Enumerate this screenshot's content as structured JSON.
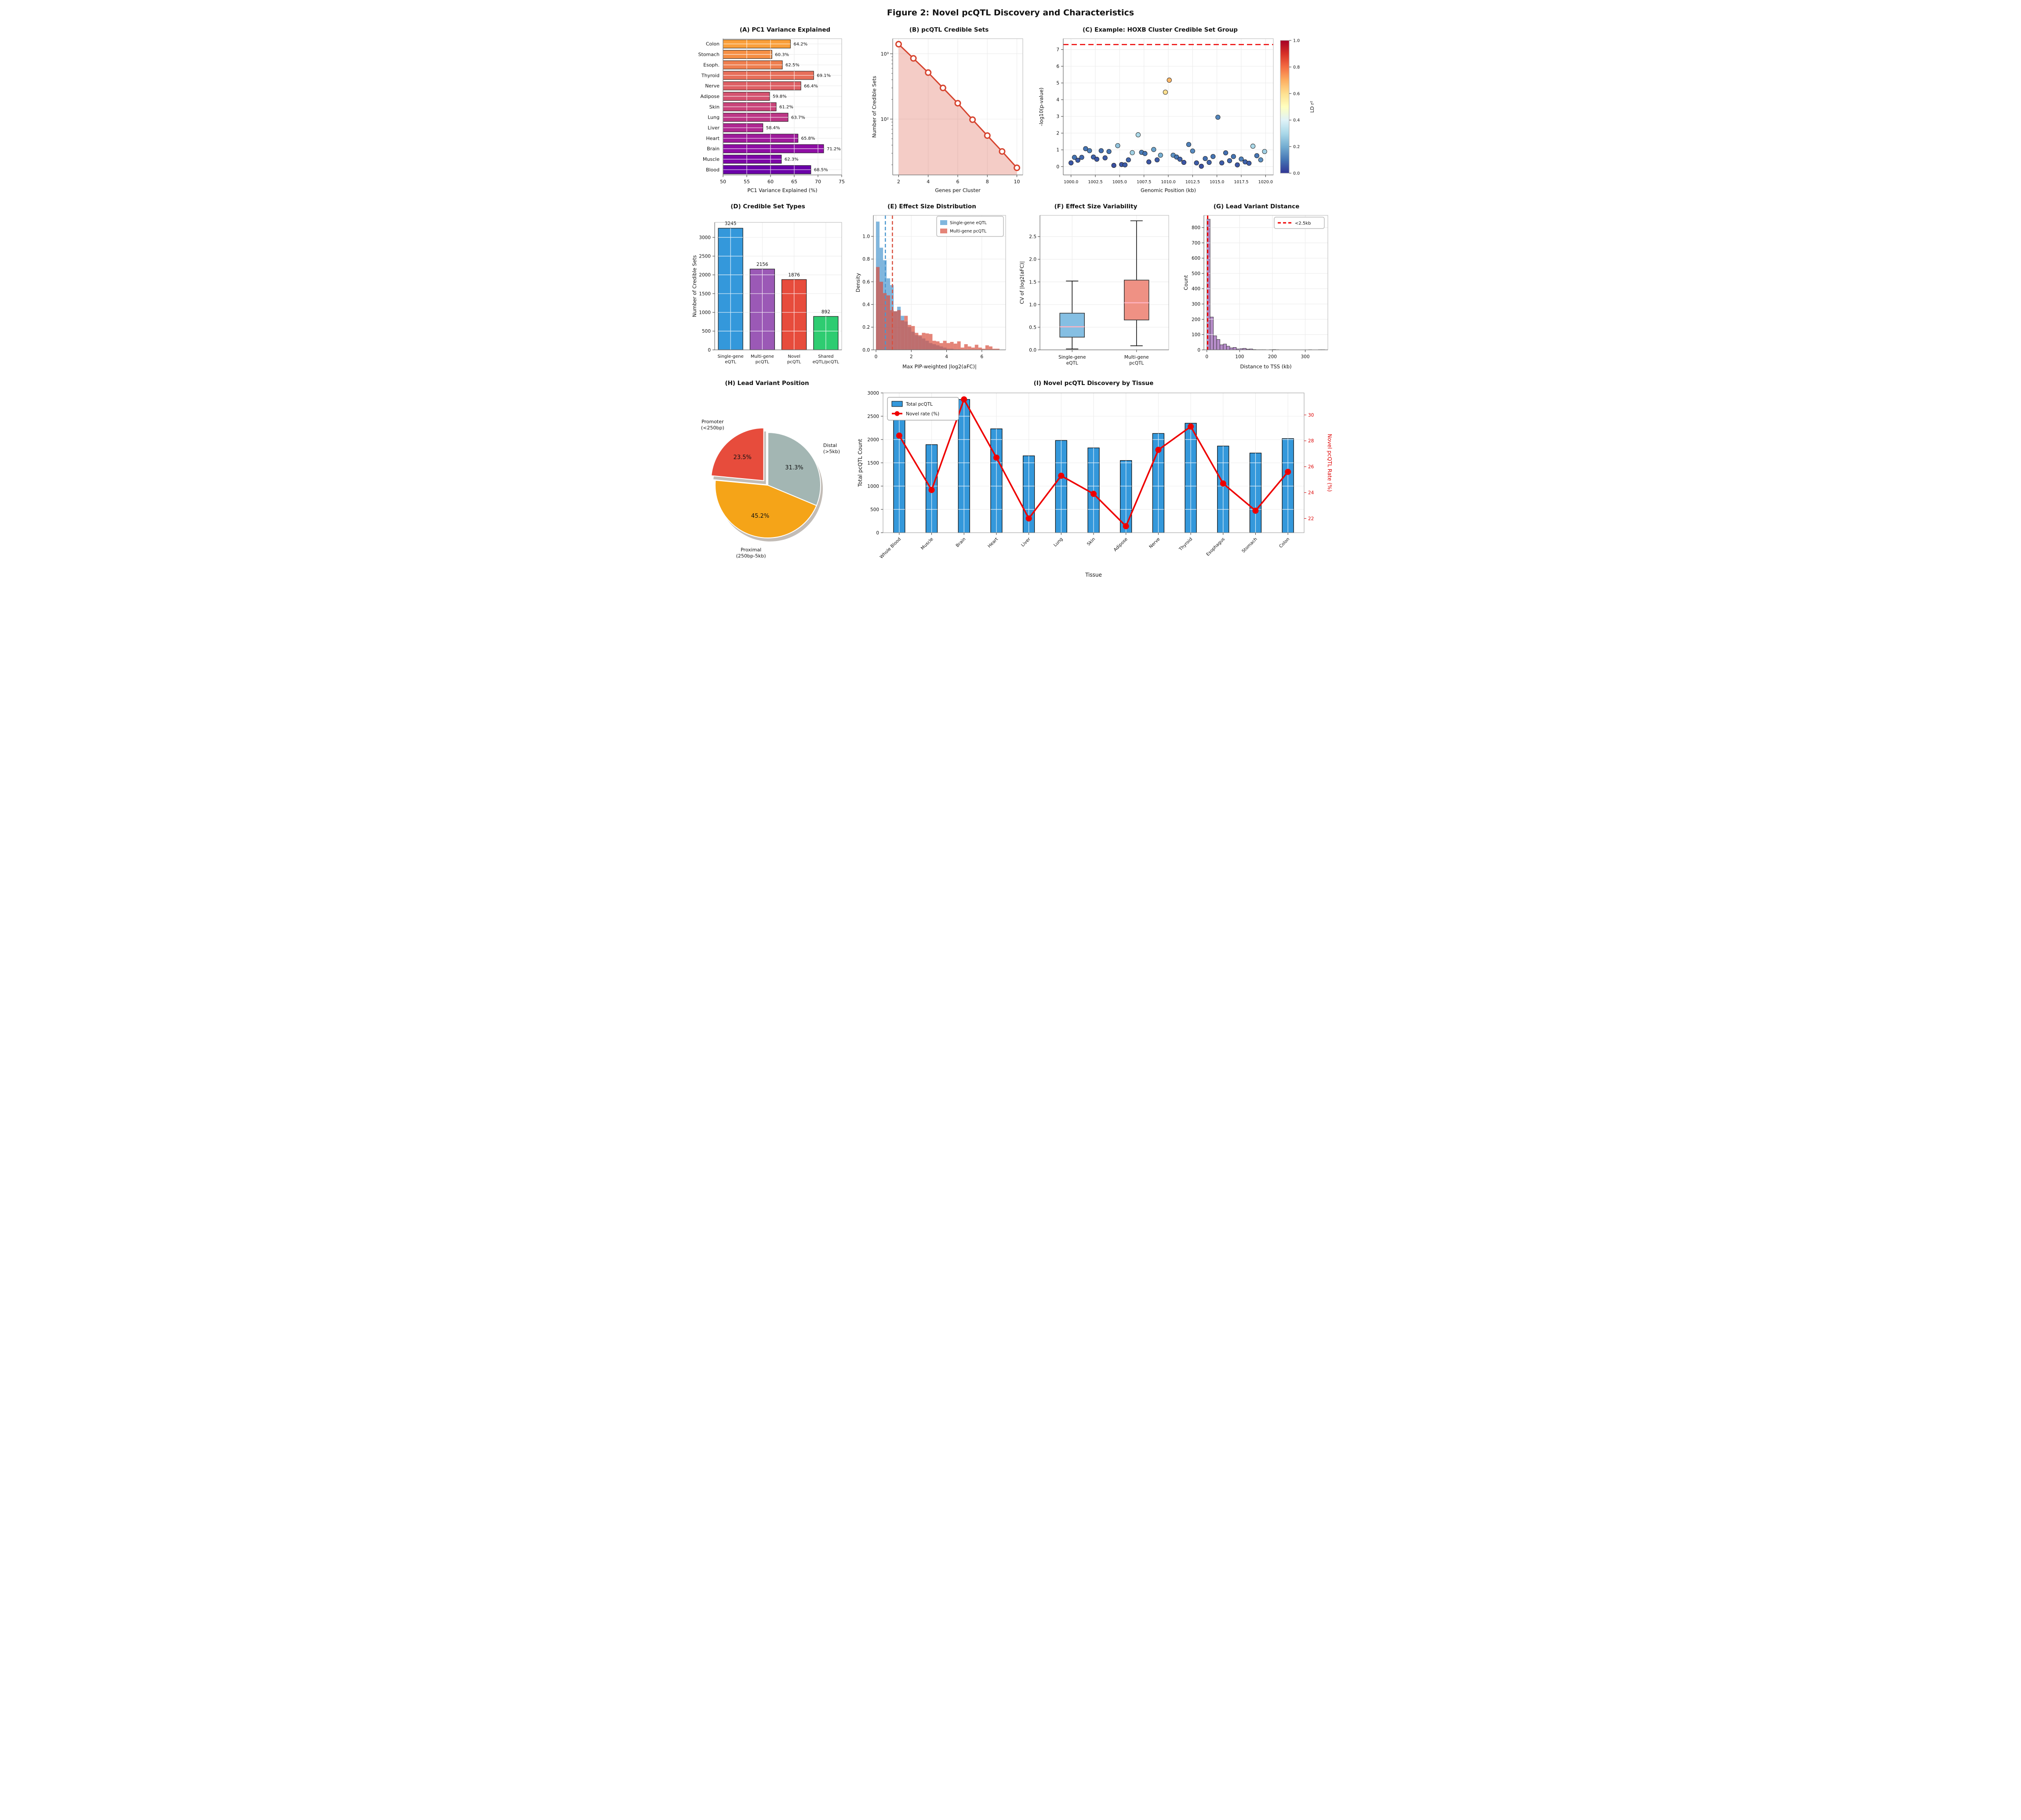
{
  "figure": {
    "title": "Figure 2: Novel pcQTL Discovery and Characteristics",
    "background": "#ffffff"
  },
  "chart_data": [
    {
      "id": "A",
      "type": "bar",
      "orientation": "horizontal",
      "title": "(A) PC1 Variance Explained",
      "xlabel": "PC1 Variance Explained (%)",
      "categories": [
        "Colon",
        "Stomach",
        "Esoph.",
        "Thyroid",
        "Nerve",
        "Adipose",
        "Skin",
        "Lung",
        "Liver",
        "Heart",
        "Brain",
        "Muscle",
        "Blood"
      ],
      "values": [
        64.2,
        60.3,
        62.5,
        69.1,
        66.4,
        59.8,
        61.2,
        63.7,
        58.4,
        65.8,
        71.2,
        62.3,
        68.5
      ],
      "value_labels": [
        "64.2%",
        "60.3%",
        "62.5%",
        "69.1%",
        "66.4%",
        "59.8%",
        "61.2%",
        "63.7%",
        "58.4%",
        "65.8%",
        "71.2%",
        "62.3%",
        "68.5%"
      ],
      "bar_colors": [
        "#fa9f3a",
        "#f58f44",
        "#ef7f4f",
        "#e76f5a",
        "#de6065",
        "#d45270",
        "#c9447a",
        "#bc3686",
        "#af2891",
        "#9e1a9b",
        "#8e0da4",
        "#7c06a6",
        "#6a00a8"
      ],
      "xlim": [
        50,
        75
      ],
      "xticks": [
        50,
        55,
        60,
        65,
        70,
        75
      ],
      "grid": true
    },
    {
      "id": "B",
      "type": "line",
      "title": "(B) pcQTL Credible Sets",
      "xlabel": "Genes per Cluster",
      "ylabel": "Number of Credible Sets",
      "x": [
        2,
        3,
        4,
        5,
        6,
        7,
        8,
        9,
        10
      ],
      "y": [
        1400,
        850,
        515,
        300,
        175,
        98,
        56,
        32,
        18
      ],
      "yscale": "log",
      "ylim": [
        14,
        1700
      ],
      "xlim": [
        1.6,
        10.4
      ],
      "xticks": [
        2,
        4,
        6,
        8,
        10
      ],
      "ytick_vals": [
        100,
        1000
      ],
      "ytick_labels": [
        "10²",
        "10³"
      ],
      "minor_ticks": [
        20,
        30,
        40,
        50,
        60,
        70,
        80,
        90,
        200,
        300,
        400,
        500,
        600,
        700,
        800,
        900
      ],
      "line_color": "#d6432e",
      "fill_opacity": 0.27
    },
    {
      "id": "C",
      "type": "scatter",
      "title": "(C) Example: HOXB Cluster Credible Set Group",
      "xlabel": "Genomic Position (kb)",
      "ylabel": "-log10(p-value)",
      "points": [
        [
          1000.0,
          0.22,
          0.05
        ],
        [
          1000.35,
          0.55,
          0.1
        ],
        [
          1000.7,
          0.38,
          0.06
        ],
        [
          1001.1,
          0.55,
          0.08
        ],
        [
          1001.5,
          1.07,
          0.1
        ],
        [
          1001.9,
          0.95,
          0.12
        ],
        [
          1002.3,
          0.57,
          0.07
        ],
        [
          1002.65,
          0.44,
          0.05
        ],
        [
          1003.1,
          0.95,
          0.09
        ],
        [
          1003.5,
          0.52,
          0.06
        ],
        [
          1003.9,
          0.9,
          0.1
        ],
        [
          1004.4,
          0.07,
          0.04
        ],
        [
          1004.8,
          1.25,
          0.25
        ],
        [
          1005.2,
          0.12,
          0.05
        ],
        [
          1005.55,
          0.1,
          0.06
        ],
        [
          1005.9,
          0.4,
          0.07
        ],
        [
          1006.3,
          0.83,
          0.28
        ],
        [
          1006.9,
          1.9,
          0.3
        ],
        [
          1007.25,
          0.85,
          0.12
        ],
        [
          1007.6,
          0.78,
          0.1
        ],
        [
          1008.0,
          0.28,
          0.05
        ],
        [
          1008.5,
          1.02,
          0.18
        ],
        [
          1008.85,
          0.4,
          0.06
        ],
        [
          1009.2,
          0.68,
          0.2
        ],
        [
          1009.7,
          4.45,
          0.6
        ],
        [
          1010.1,
          5.17,
          0.68
        ],
        [
          1010.5,
          0.68,
          0.15
        ],
        [
          1010.85,
          0.57,
          0.1
        ],
        [
          1011.2,
          0.44,
          0.07
        ],
        [
          1011.6,
          0.25,
          0.05
        ],
        [
          1012.1,
          1.32,
          0.12
        ],
        [
          1012.5,
          0.93,
          0.14
        ],
        [
          1012.9,
          0.22,
          0.06
        ],
        [
          1013.4,
          0.02,
          0.04
        ],
        [
          1013.8,
          0.48,
          0.09
        ],
        [
          1014.2,
          0.25,
          0.07
        ],
        [
          1014.6,
          0.6,
          0.1
        ],
        [
          1015.1,
          2.95,
          0.13
        ],
        [
          1015.5,
          0.22,
          0.06
        ],
        [
          1015.9,
          0.82,
          0.09
        ],
        [
          1016.3,
          0.35,
          0.08
        ],
        [
          1016.7,
          0.6,
          0.1
        ],
        [
          1017.1,
          0.1,
          0.05
        ],
        [
          1017.5,
          0.45,
          0.12
        ],
        [
          1017.9,
          0.28,
          0.07
        ],
        [
          1018.3,
          0.2,
          0.06
        ],
        [
          1018.7,
          1.22,
          0.3
        ],
        [
          1019.1,
          0.65,
          0.1
        ],
        [
          1019.5,
          0.4,
          0.15
        ],
        [
          1019.9,
          0.9,
          0.28
        ]
      ],
      "xlim": [
        999.2,
        1020.8
      ],
      "ylim": [
        -0.5,
        7.65
      ],
      "xtick_vals": [
        1000,
        1002.5,
        1005,
        1007.5,
        1010,
        1012.5,
        1015,
        1017.5,
        1020
      ],
      "xtick_labels": [
        "1000.0",
        "1002.5",
        "1005.0",
        "1007.5",
        "1010.0",
        "1012.5",
        "1015.0",
        "1017.5",
        "1020.0"
      ],
      "yticks": [
        0,
        1,
        2,
        3,
        4,
        5,
        6,
        7
      ],
      "threshold_line": {
        "y": 7.3,
        "color": "#ee1111"
      },
      "colorbar": {
        "label": "LD r²",
        "ticks": [
          "0.0",
          "0.2",
          "0.4",
          "0.6",
          "0.8",
          "1.0"
        ],
        "cmap": [
          "#313695",
          "#4575b4",
          "#74add1",
          "#abd9e9",
          "#e0f3f8",
          "#ffffbf",
          "#fee090",
          "#fdae61",
          "#f46d43",
          "#d73027",
          "#a50026"
        ]
      }
    },
    {
      "id": "D",
      "type": "bar",
      "orientation": "vertical",
      "title": "(D) Credible Set Types",
      "ylabel": "Number of Credible Sets",
      "categories": [
        "Single-gene\neQTL",
        "Multi-gene\npcQTL",
        "Novel\npcQTL",
        "Shared\neQTL/pcQTL"
      ],
      "values": [
        3245,
        2156,
        1876,
        892
      ],
      "value_labels": [
        "3245",
        "2156",
        "1876",
        "892"
      ],
      "bar_colors": [
        "#3498db",
        "#9b59b6",
        "#e74c3c",
        "#2ecc71"
      ],
      "ylim": [
        0,
        3400
      ],
      "yticks": [
        0,
        500,
        1000,
        1500,
        2000,
        2500,
        3000
      ]
    },
    {
      "id": "E",
      "type": "histogram",
      "title": "(E) Effect Size Distribution",
      "xlabel": "Max PIP-weighted |log2(aFC)|",
      "ylabel": "Density",
      "bin_start": 0,
      "bin_width": 0.2,
      "series": [
        {
          "name": "Single-gene eQTL",
          "color": "#4a97cf",
          "opacity": 0.7,
          "mean_line": 0.53,
          "values": [
            1.13,
            0.9,
            0.79,
            0.63,
            0.57,
            0.34,
            0.38,
            0.3,
            0.25,
            0.2,
            0.16,
            0.13,
            0.12,
            0.1,
            0.08,
            0.06,
            0.05,
            0.04,
            0.03,
            0.02,
            0.01,
            0.01,
            0.005,
            0.005,
            0,
            0,
            0,
            0,
            0,
            0,
            0,
            0,
            0,
            0,
            0
          ]
        },
        {
          "name": "Multi-gene pcQTL",
          "color": "#d9503f",
          "opacity": 0.7,
          "mean_line": 0.93,
          "values": [
            0.73,
            0.6,
            0.5,
            0.48,
            0.35,
            0.34,
            0.35,
            0.26,
            0.3,
            0.22,
            0.21,
            0.15,
            0.13,
            0.15,
            0.145,
            0.14,
            0.08,
            0.075,
            0.06,
            0.08,
            0.06,
            0.07,
            0.055,
            0.075,
            0.02,
            0.05,
            0.03,
            0.02,
            0.045,
            0.02,
            0.01,
            0.04,
            0.03,
            0.01,
            0.01
          ]
        }
      ],
      "xlim": [
        -0.15,
        7.35
      ],
      "ylim": [
        0,
        1.185
      ],
      "xticks": [
        0,
        2,
        4,
        6
      ],
      "ytick_vals": [
        0,
        0.2,
        0.4,
        0.6,
        0.8,
        1.0
      ],
      "ytick_labels": [
        "0.0",
        "0.2",
        "0.4",
        "0.6",
        "0.8",
        "1.0"
      ]
    },
    {
      "id": "F",
      "type": "box",
      "title": "(F) Effect Size Variability",
      "ylabel": "CV of |log2(aFC)|",
      "categories": [
        "Single-gene\neQTL",
        "Multi-gene\npcQTL"
      ],
      "boxes": [
        {
          "whisker_low": 0.02,
          "q1": 0.28,
          "median": 0.51,
          "q3": 0.81,
          "whisker_high": 1.52,
          "color": "#85bfe3"
        },
        {
          "whisker_low": 0.09,
          "q1": 0.66,
          "median": 1.04,
          "q3": 1.54,
          "whisker_high": 2.85,
          "color": "#ef9184"
        }
      ],
      "median_color": "#ffb3c1",
      "ylim": [
        0,
        2.97
      ],
      "ytick_vals": [
        0,
        0.5,
        1.0,
        1.5,
        2.0,
        2.5
      ],
      "ytick_labels": [
        "0.0",
        "0.5",
        "1.0",
        "1.5",
        "2.0",
        "2.5"
      ]
    },
    {
      "id": "G",
      "type": "histogram",
      "title": "(G) Lead Variant Distance",
      "xlabel": "Distance to TSS (kb)",
      "ylabel": "Count",
      "bin_start": 0,
      "bin_width": 10,
      "series": [
        {
          "name": "",
          "color": "#b58cc8",
          "opacity": 1,
          "edge": "#222222",
          "values": [
            855,
            215,
            92,
            68,
            33,
            38,
            24,
            13,
            16,
            6,
            8,
            10,
            5,
            6,
            2,
            1,
            1,
            1,
            0,
            1,
            2,
            1,
            0,
            0,
            0,
            0,
            0,
            0,
            0,
            0,
            0,
            1,
            0,
            0,
            1,
            1
          ]
        }
      ],
      "xlim": [
        -9,
        369
      ],
      "ylim": [
        0,
        880
      ],
      "xticks": [
        0,
        100,
        200,
        300
      ],
      "ytick_vals": [
        0,
        100,
        200,
        300,
        400,
        500,
        600,
        700,
        800
      ],
      "ytick_labels": [
        "0",
        "100",
        "200",
        "300",
        "400",
        "500",
        "600",
        "700",
        "800"
      ],
      "vline": {
        "x": 2.5,
        "color": "#ee0000",
        "label": "<2.5kb"
      }
    },
    {
      "id": "H",
      "type": "pie",
      "title": "(H) Lead Variant Position",
      "slices": [
        {
          "label": "Distal\n(>5kb)",
          "pct": 31.3,
          "pct_label": "31.3%",
          "color": "#a3b6b3",
          "explode": false
        },
        {
          "label": "Proximal\n(250bp-5kb)",
          "pct": 45.2,
          "pct_label": "45.2%",
          "color": "#f5a418",
          "explode": false
        },
        {
          "label": "Promoter\n(<250bp)",
          "pct": 23.5,
          "pct_label": "23.5%",
          "color": "#e74c3c",
          "explode": true
        }
      ],
      "start_angle": 90,
      "clockwise": true,
      "shadow": true
    },
    {
      "id": "I",
      "type": "combo",
      "title": "(I) Novel pcQTL Discovery by Tissue",
      "xlabel": "Tissue",
      "ylabel_left": "Total pcQTL Count",
      "ylabel_right": "Novel pcQTL Rate (%)",
      "categories": [
        "Whole Blood",
        "Muscle",
        "Brain",
        "Heart",
        "Liver",
        "Lung",
        "Skin",
        "Adipose",
        "Nerve",
        "Thyroid",
        "Esophagus",
        "Stomach",
        "Colon"
      ],
      "bars": {
        "name": "Total pcQTL",
        "color": "#3498db",
        "values": [
          2450,
          1890,
          2860,
          2230,
          1650,
          1980,
          1820,
          1550,
          2130,
          2350,
          1860,
          1710,
          2020
        ]
      },
      "line": {
        "name": "Novel rate (%)",
        "color": "#ee0000",
        "values": [
          28.4,
          24.2,
          31.2,
          26.7,
          22.0,
          25.3,
          23.9,
          21.4,
          27.3,
          29.1,
          24.7,
          22.6,
          25.6
        ]
      },
      "ylim_left": [
        0,
        3000
      ],
      "yticks_left": [
        0,
        500,
        1000,
        1500,
        2000,
        2500,
        3000
      ],
      "ylim_right": [
        20.9,
        31.7
      ],
      "yticks_right": [
        22,
        24,
        26,
        28,
        30
      ]
    }
  ]
}
